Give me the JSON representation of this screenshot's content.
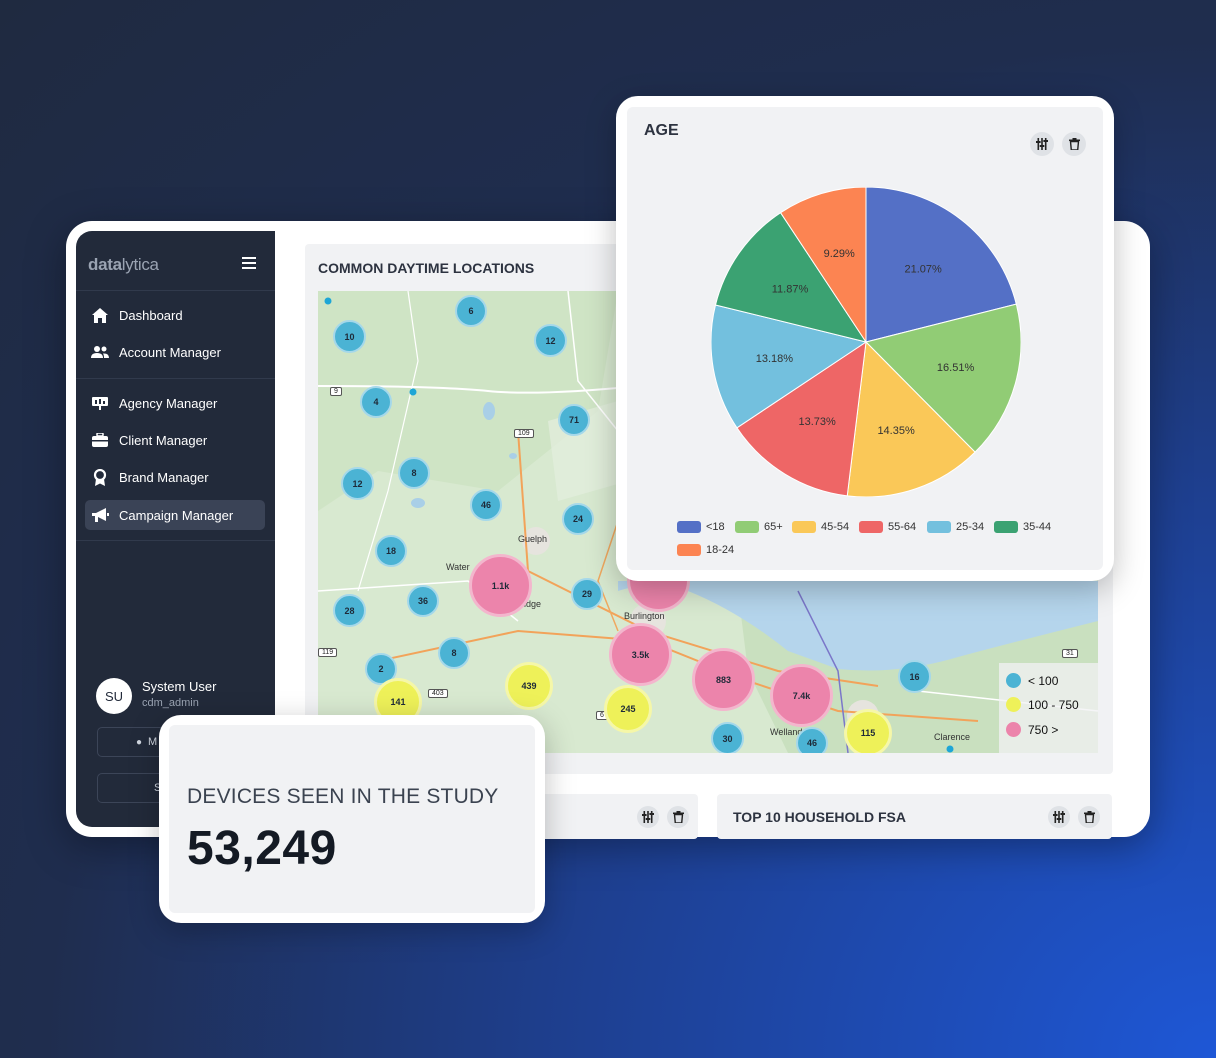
{
  "sidebar": {
    "logo_main": "data",
    "logo_rest": "lytica",
    "items": [
      {
        "label": "Dashboard",
        "icon": "home-icon"
      },
      {
        "label": "Account Manager",
        "icon": "users-icon"
      },
      {
        "label": "Agency Manager",
        "icon": "agency-icon"
      },
      {
        "label": "Client Manager",
        "icon": "briefcase-icon"
      },
      {
        "label": "Brand Manager",
        "icon": "award-icon"
      },
      {
        "label": "Campaign Manager",
        "icon": "megaphone-icon"
      }
    ],
    "user": {
      "initials": "SU",
      "name": "System User",
      "role": "cdm_admin"
    },
    "button_1": "M",
    "button_2": "S"
  },
  "map_card": {
    "title": "COMMON DAYTIME LOCATIONS",
    "clusters": [
      {
        "label": "6",
        "tier": "blue"
      },
      {
        "label": "10",
        "tier": "blue"
      },
      {
        "label": "12",
        "tier": "blue"
      },
      {
        "label": "4",
        "tier": "blue"
      },
      {
        "label": "71",
        "tier": "blue"
      },
      {
        "label": "12",
        "tier": "blue"
      },
      {
        "label": "8",
        "tier": "blue"
      },
      {
        "label": "46",
        "tier": "blue"
      },
      {
        "label": "24",
        "tier": "blue"
      },
      {
        "label": "18",
        "tier": "blue"
      },
      {
        "label": "28",
        "tier": "blue"
      },
      {
        "label": "36",
        "tier": "blue"
      },
      {
        "label": "29",
        "tier": "blue"
      },
      {
        "label": "8",
        "tier": "blue"
      },
      {
        "label": "2",
        "tier": "blue"
      },
      {
        "label": "16",
        "tier": "blue"
      },
      {
        "label": "30",
        "tier": "blue"
      },
      {
        "label": "46",
        "tier": "blue"
      },
      {
        "label": "1.1k",
        "tier": "pink"
      },
      {
        "label": "3.5k",
        "tier": "pink"
      },
      {
        "label": "883",
        "tier": "pink"
      },
      {
        "label": "7.4k",
        "tier": "pink"
      },
      {
        "label": "",
        "tier": "pink"
      },
      {
        "label": "439",
        "tier": "yellow"
      },
      {
        "label": "141",
        "tier": "yellow"
      },
      {
        "label": "245",
        "tier": "yellow"
      },
      {
        "label": "115",
        "tier": "yellow"
      }
    ],
    "places": [
      "Guelph",
      "Water",
      "idge",
      "Burlington",
      "Welland",
      "Clarence"
    ],
    "road_shields": [
      "9",
      "109",
      "119",
      "403",
      "6",
      "31"
    ],
    "legend": [
      {
        "label": "< 100",
        "color": "#4bb3d4"
      },
      {
        "label": "100 - 750",
        "color": "#eef159"
      },
      {
        "label": "750 >",
        "color": "#ec84ab"
      }
    ]
  },
  "bottom_cards": {
    "right_title": "TOP 10 HOUSEHOLD FSA"
  },
  "age_card": {
    "title": "AGE"
  },
  "devices_card": {
    "label": "DEVICES SEEN IN THE STUDY",
    "value": "53,249"
  },
  "chart_data": {
    "type": "pie",
    "title": "AGE",
    "slices": [
      {
        "label": "<18",
        "value": 21.07,
        "display": "21.07%",
        "color": "#5470c6"
      },
      {
        "label": "65+",
        "value": 16.51,
        "display": "16.51%",
        "color": "#91cc75"
      },
      {
        "label": "45-54",
        "value": 14.35,
        "display": "14.35%",
        "color": "#fac858"
      },
      {
        "label": "55-64",
        "value": 13.73,
        "display": "13.73%",
        "color": "#ee6666"
      },
      {
        "label": "25-34",
        "value": 13.18,
        "display": "13.18%",
        "color": "#73c0de"
      },
      {
        "label": "35-44",
        "value": 11.87,
        "display": "11.87%",
        "color": "#3ba272"
      },
      {
        "label": "18-24",
        "value": 9.29,
        "display": "9.29%",
        "color": "#fc8452"
      }
    ],
    "legend_position": "bottom"
  }
}
